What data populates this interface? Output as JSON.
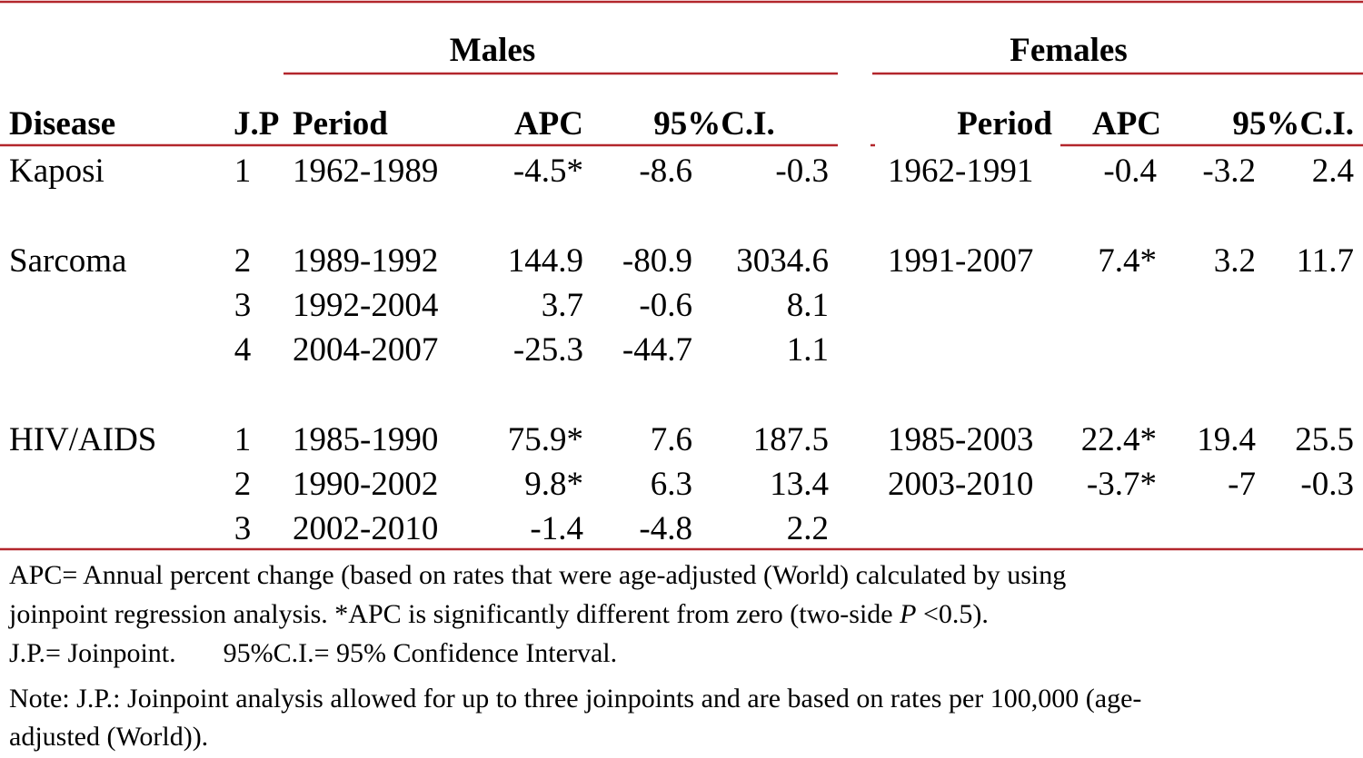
{
  "header": {
    "groups": [
      "Males",
      "Females"
    ],
    "columns": [
      "Disease",
      "J.P",
      "Period",
      "APC",
      "95%C.I.",
      "Period",
      "APC",
      "95%C.I."
    ]
  },
  "table": {
    "rows": [
      [
        "Kaposi",
        "1",
        "1962-1989",
        "-4.5*",
        "-8.6",
        "-0.3",
        "1962-1991",
        "-0.4",
        "-3.2",
        "2.4"
      ],
      [
        "Sarcoma",
        "2",
        "1989-1992",
        "144.9",
        "-80.9",
        "3034.6",
        "1991-2007",
        "7.4*",
        "3.2",
        "11.7"
      ],
      [
        null,
        "3",
        "1992-2004",
        "3.7",
        "-0.6",
        "8.1",
        null,
        null,
        null,
        null
      ],
      [
        null,
        "4",
        "2004-2007",
        "-25.3",
        "-44.7",
        "1.1",
        null,
        null,
        null,
        null
      ],
      [
        "HIV/AIDS",
        "1",
        "1985-1990",
        "75.9*",
        "7.6",
        "187.5",
        "1985-2003",
        "22.4*",
        "19.4",
        "25.5"
      ],
      [
        null,
        "2",
        "1990-2002",
        "9.8*",
        "6.3",
        "13.4",
        "2003-2010",
        "-3.7*",
        "-7",
        "-0.3"
      ],
      [
        null,
        "3",
        "2002-2010",
        "-1.4",
        "-4.8",
        "2.2",
        null,
        null,
        null,
        null
      ]
    ]
  },
  "notes": {
    "lines": [
      [
        "APC= Annual percent change (based on rates that were age-adjusted (World) calculated by using"
      ],
      [
        "joinpoint regression analysis. *APC is significantly different from zero (two-side ",
        {
          "text": "P",
          "italic": true
        },
        " <0.5)."
      ],
      [
        "J.P.= Joinpoint.",
        "95%C.I.= 95% Confidence Interval."
      ],
      [
        "Note: J.P.: Joinpoint analysis allowed for up to three joinpoints and are based on rates per 100,000 (age-"
      ],
      [
        "adjusted (World))."
      ]
    ]
  }
}
